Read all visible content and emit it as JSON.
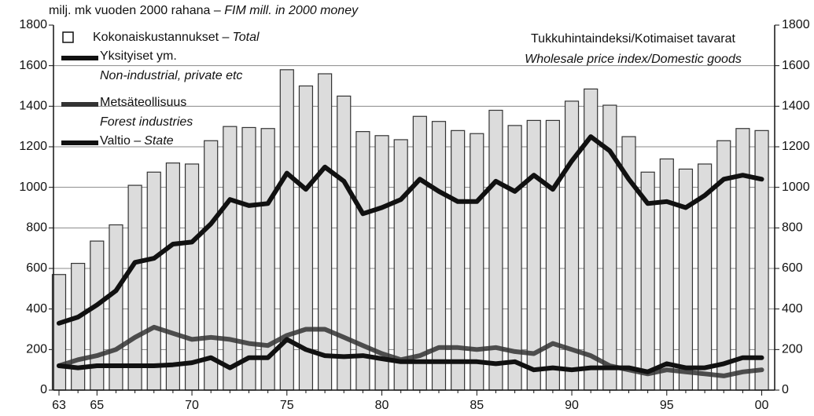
{
  "chart_data": {
    "type": "bar_line",
    "title": "milj. mk vuoden 2000 rahana –",
    "title_en": "FIM mill. in 2000 money",
    "note": "Tukkuhintaindeksi/Kotimaiset tavarat",
    "note_en": "Wholesale price index/Domestic goods",
    "categories": [
      "63",
      null,
      "65",
      null,
      null,
      null,
      null,
      "70",
      null,
      null,
      null,
      null,
      "75",
      null,
      null,
      null,
      null,
      "80",
      null,
      null,
      null,
      null,
      "85",
      null,
      null,
      null,
      null,
      "90",
      null,
      null,
      null,
      null,
      "95",
      null,
      null,
      null,
      null,
      "00"
    ],
    "series": [
      {
        "name": "Kokonaiskustannukset –",
        "name_en": "Total",
        "kind": "bar",
        "color": "#dcdcdc",
        "values": [
          570,
          625,
          735,
          815,
          1010,
          1075,
          1120,
          1115,
          1230,
          1300,
          1295,
          1290,
          1580,
          1500,
          1560,
          1450,
          1275,
          1255,
          1235,
          1350,
          1325,
          1280,
          1265,
          1380,
          1305,
          1330,
          1330,
          1425,
          1485,
          1405,
          1250,
          1075,
          1140,
          1090,
          1115,
          1230,
          1290,
          1280
        ]
      },
      {
        "name": "Yksityiset ym.",
        "name_en": "Non-industrial, private etc",
        "kind": "line",
        "color": "#111111",
        "values": [
          330,
          360,
          420,
          490,
          630,
          650,
          720,
          730,
          820,
          940,
          910,
          920,
          1070,
          990,
          1100,
          1030,
          870,
          900,
          940,
          1040,
          980,
          930,
          930,
          1030,
          980,
          1060,
          990,
          1130,
          1250,
          1180,
          1040,
          920,
          930,
          900,
          960,
          1040,
          1060,
          1040
        ]
      },
      {
        "name": "Metsäteollisuus",
        "name_en": "Forest industries",
        "kind": "line",
        "color": "#333333",
        "values": [
          120,
          150,
          170,
          200,
          260,
          310,
          280,
          250,
          260,
          250,
          230,
          220,
          270,
          300,
          300,
          260,
          220,
          180,
          150,
          170,
          210,
          210,
          200,
          210,
          190,
          180,
          230,
          200,
          170,
          120,
          100,
          80,
          100,
          90,
          80,
          70,
          90,
          100
        ]
      },
      {
        "name": "Valtio –",
        "name_en": "State",
        "kind": "line",
        "color": "#111111",
        "values": [
          120,
          110,
          120,
          120,
          120,
          120,
          125,
          135,
          160,
          110,
          160,
          160,
          250,
          200,
          170,
          165,
          170,
          155,
          140,
          140,
          140,
          140,
          140,
          130,
          140,
          100,
          110,
          100,
          110,
          110,
          110,
          90,
          130,
          110,
          110,
          130,
          160,
          160
        ]
      }
    ],
    "ylim": [
      0,
      1800
    ],
    "yticks": [
      0,
      200,
      400,
      600,
      800,
      1000,
      1200,
      1400,
      1600,
      1800
    ],
    "y2lim": [
      0,
      1800
    ],
    "y2ticks": [
      0,
      200,
      400,
      600,
      800,
      1000,
      1200,
      1400,
      1600,
      1800
    ],
    "grid": true
  }
}
